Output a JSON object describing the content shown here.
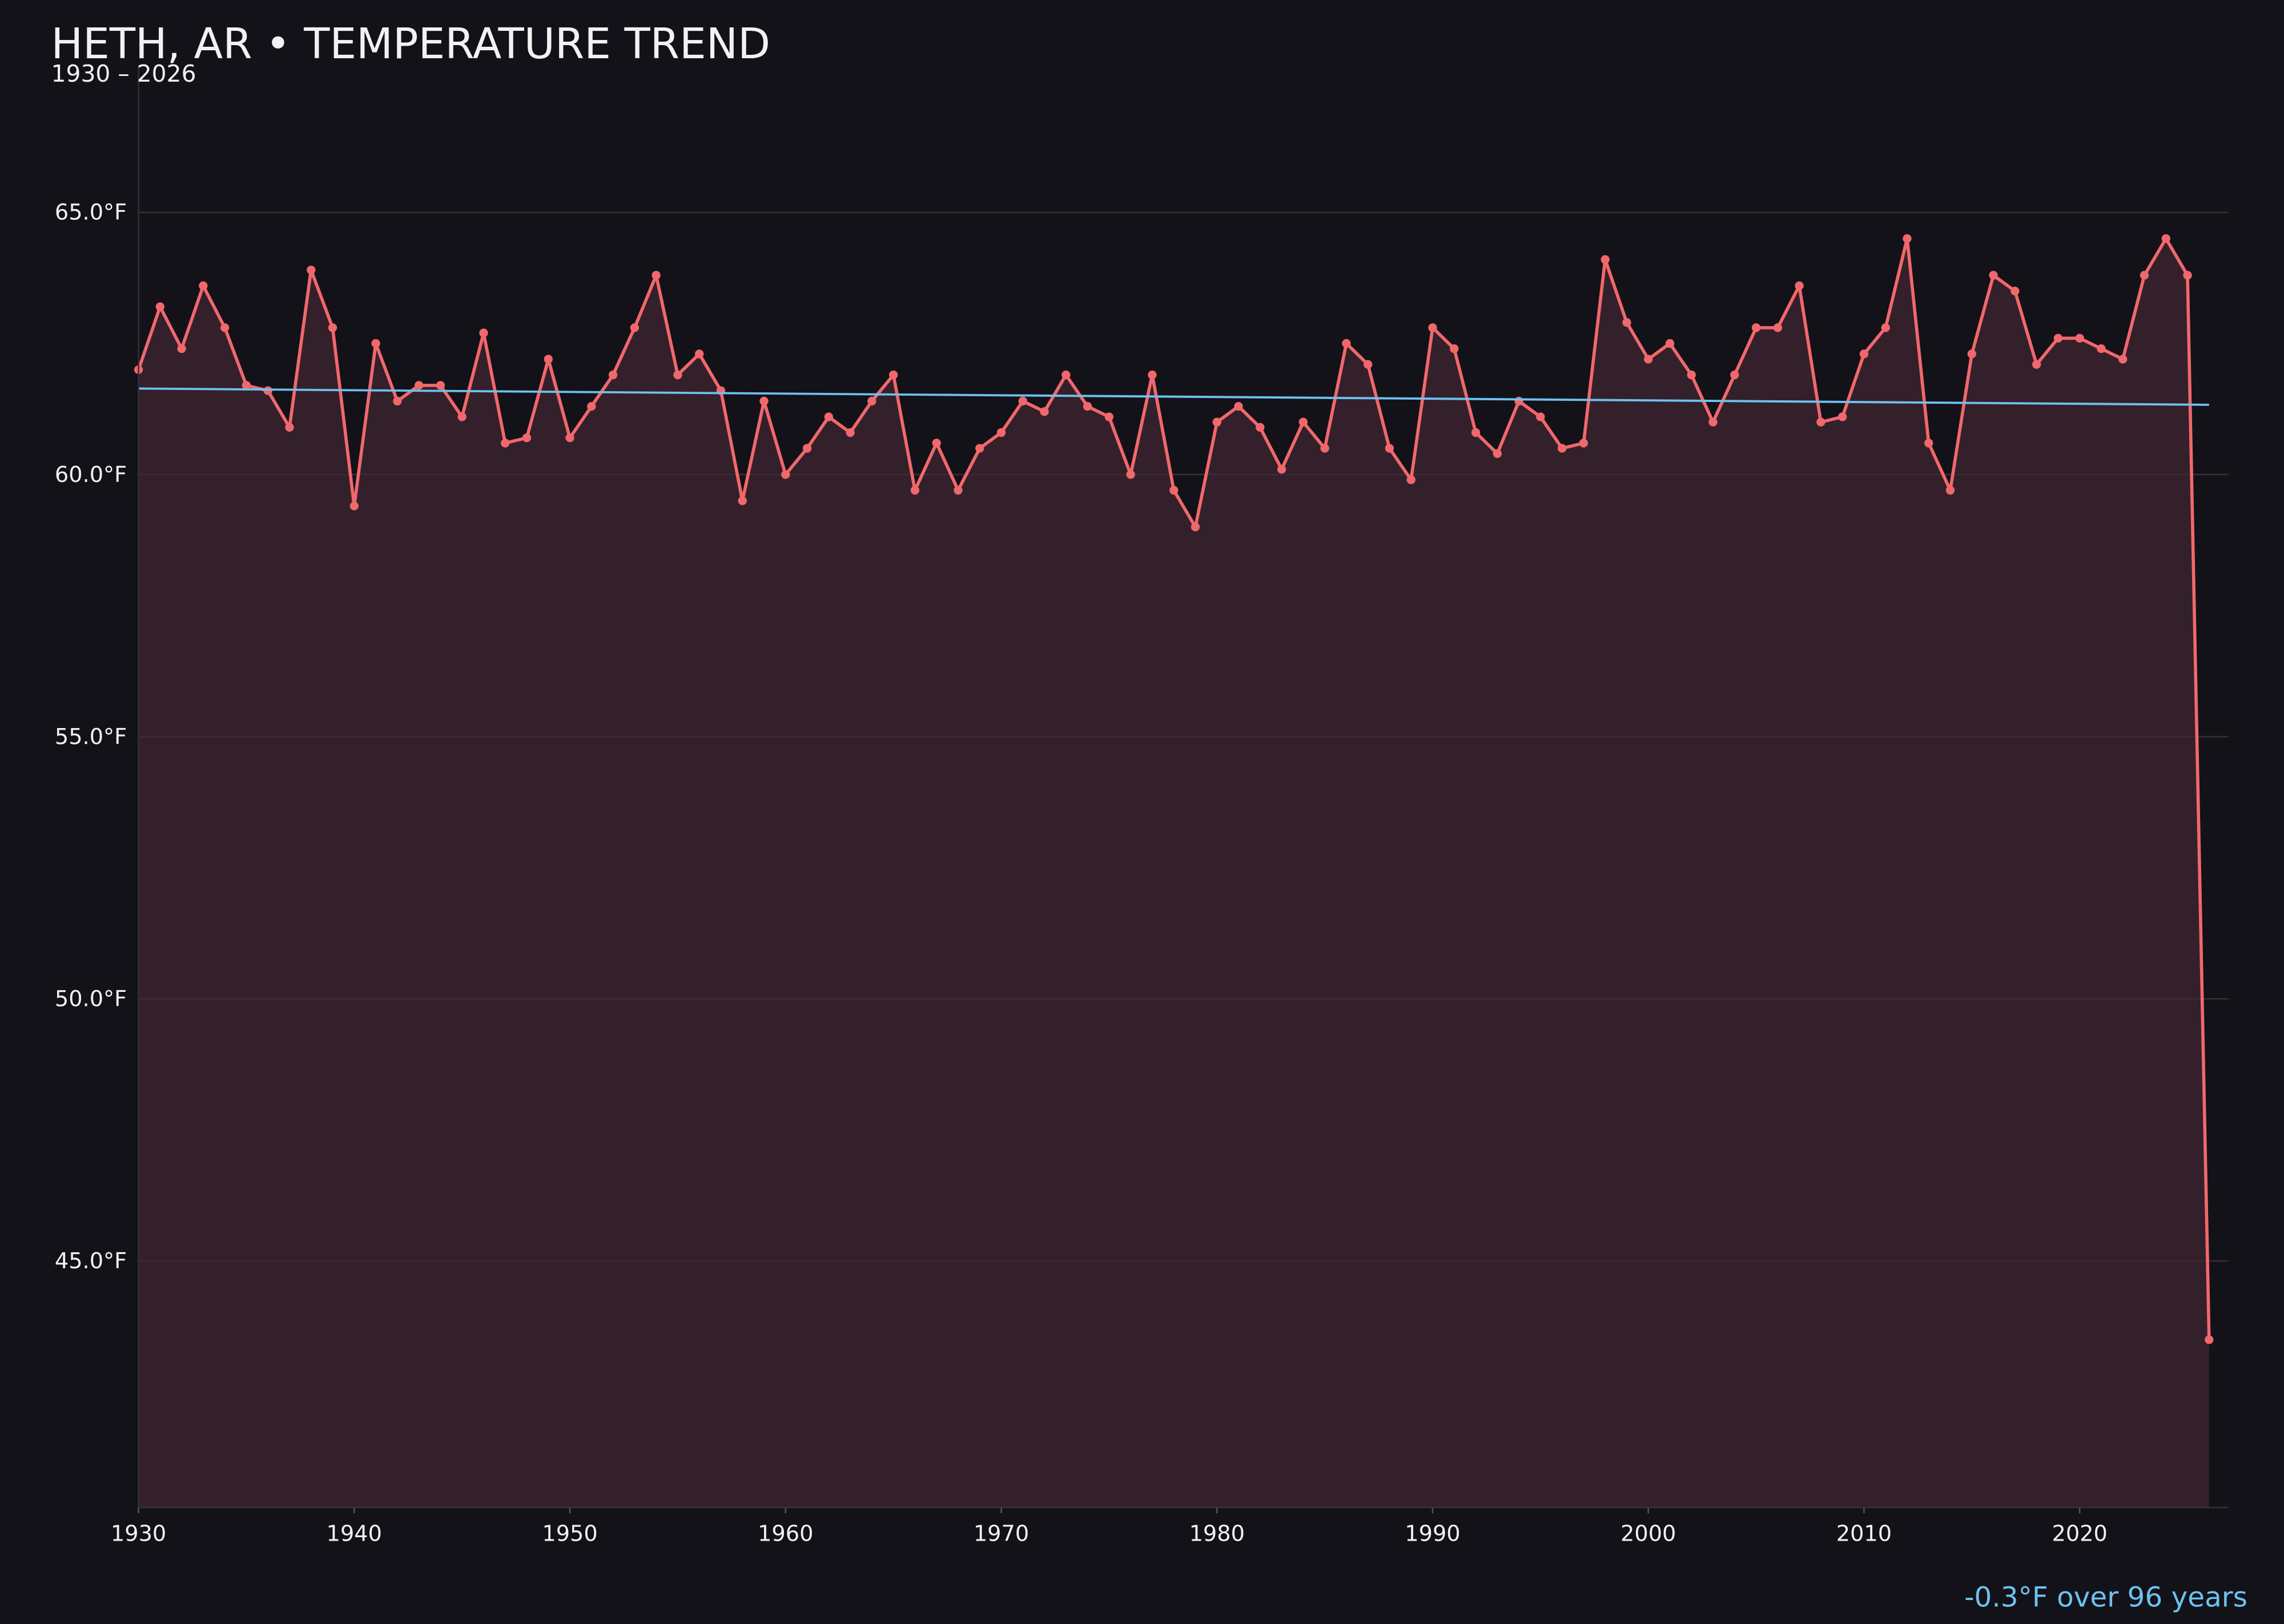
{
  "chart_data": {
    "type": "line",
    "title": "HETH, AR • TEMPERATURE TREND",
    "subtitle": "1930 – 2026",
    "annotation": "-0.3°F over 96 years",
    "x": [
      1930,
      1931,
      1932,
      1933,
      1934,
      1935,
      1936,
      1937,
      1938,
      1939,
      1940,
      1941,
      1942,
      1943,
      1944,
      1945,
      1946,
      1947,
      1948,
      1949,
      1950,
      1951,
      1952,
      1953,
      1954,
      1955,
      1956,
      1957,
      1958,
      1959,
      1960,
      1961,
      1962,
      1963,
      1964,
      1965,
      1966,
      1967,
      1968,
      1969,
      1970,
      1971,
      1972,
      1973,
      1974,
      1975,
      1976,
      1977,
      1978,
      1979,
      1980,
      1981,
      1982,
      1983,
      1984,
      1985,
      1986,
      1987,
      1988,
      1989,
      1990,
      1991,
      1992,
      1993,
      1994,
      1995,
      1996,
      1997,
      1998,
      1999,
      2000,
      2001,
      2002,
      2003,
      2004,
      2005,
      2006,
      2007,
      2008,
      2009,
      2010,
      2011,
      2012,
      2013,
      2014,
      2015,
      2016,
      2017,
      2018,
      2019,
      2020,
      2021,
      2022,
      2023,
      2024,
      2025,
      2026
    ],
    "series": [
      {
        "color": "#f0686c",
        "fill": "#34202a",
        "values": [
          62.0,
          63.2,
          62.4,
          63.6,
          62.8,
          61.7,
          61.6,
          60.9,
          63.9,
          62.8,
          59.4,
          62.5,
          61.4,
          61.7,
          61.7,
          61.1,
          62.7,
          60.6,
          60.7,
          62.2,
          60.7,
          61.3,
          61.9,
          62.8,
          63.8,
          61.9,
          62.3,
          61.6,
          59.5,
          61.4,
          60.0,
          60.5,
          61.1,
          60.8,
          61.4,
          61.9,
          59.7,
          60.6,
          59.7,
          60.5,
          60.8,
          61.4,
          61.2,
          61.9,
          61.3,
          61.1,
          60.0,
          61.9,
          59.7,
          59.0,
          61.0,
          61.3,
          60.9,
          60.1,
          61.0,
          60.5,
          62.5,
          62.1,
          60.5,
          59.9,
          62.8,
          62.4,
          60.8,
          60.4,
          61.4,
          61.1,
          60.5,
          60.6,
          64.1,
          62.9,
          62.2,
          62.5,
          61.9,
          61.0,
          61.9,
          62.8,
          62.8,
          63.6,
          61.0,
          61.1,
          62.3,
          62.8,
          64.5,
          60.6,
          59.7,
          62.3,
          63.8,
          63.5,
          62.1,
          62.6,
          62.6,
          62.4,
          62.2,
          63.8,
          64.5,
          63.8,
          43.5
        ]
      },
      {
        "color": "#6ec1f0",
        "x": [
          1930,
          2026
        ],
        "values": [
          61.64,
          61.33
        ]
      }
    ],
    "xlim": [
      1930,
      2026.9
    ],
    "ylim": [
      40.3,
      67.8
    ],
    "xticks": [
      1930,
      1940,
      1950,
      1960,
      1970,
      1980,
      1990,
      2000,
      2010,
      2020
    ],
    "yticks": [
      {
        "value": 45,
        "label": "45.0°F"
      },
      {
        "value": 50,
        "label": "50.0°F"
      },
      {
        "value": 55,
        "label": "55.0°F"
      },
      {
        "value": 60,
        "label": "60.0°F"
      },
      {
        "value": 65,
        "label": "65.0°F"
      }
    ],
    "grid": true
  }
}
